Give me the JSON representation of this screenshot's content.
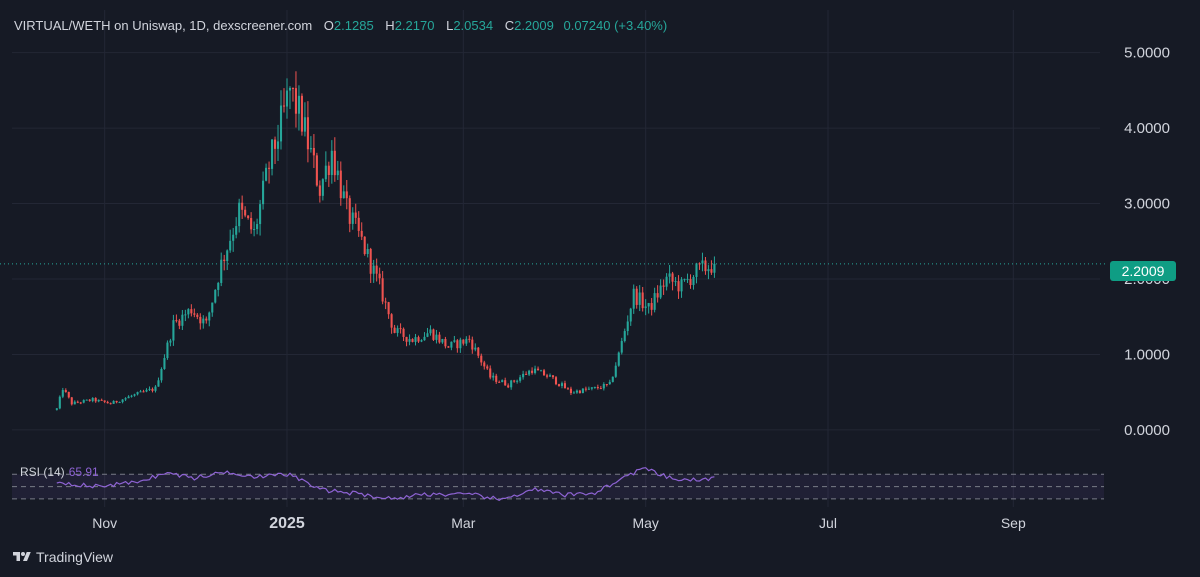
{
  "header": {
    "symbol": "VIRTUAL/WETH on Uniswap, 1D, dexscreener.com",
    "open_label": "O",
    "open": "2.1285",
    "high_label": "H",
    "high": "2.2170",
    "low_label": "L",
    "low": "2.0534",
    "close_label": "C",
    "close": "2.2009",
    "change": "0.07240 (+3.40%)"
  },
  "rsi": {
    "label": "RSI (14)",
    "value": "65.91"
  },
  "last_price_badge": "2.2009",
  "branding": {
    "name": "TradingView",
    "icon": "tradingview-logo-icon"
  },
  "colors": {
    "background": "#161a25",
    "up": "#26a69a",
    "down": "#ef5350",
    "rsi_line": "#8e63d4"
  },
  "chart_data": {
    "type": "candlestick",
    "interval": "1D",
    "y_ticks": [
      "0.0000",
      "1.0000",
      "2.0000",
      "3.0000",
      "4.0000",
      "5.0000"
    ],
    "ylim": [
      -0.2,
      5.3
    ],
    "x_ticks": [
      {
        "label": "Nov",
        "date": "2024-11-01"
      },
      {
        "label": "2025",
        "date": "2025-01-01"
      },
      {
        "label": "Mar",
        "date": "2025-03-01"
      },
      {
        "label": "May",
        "date": "2025-05-01"
      },
      {
        "label": "Jul",
        "date": "2025-07-01"
      },
      {
        "label": "Sep",
        "date": "2025-09-01"
      }
    ],
    "xlim": [
      "2024-10-01",
      "2025-09-30"
    ],
    "last_price": 2.2009,
    "first_date": "2024-10-16",
    "close_anchors": [
      [
        "2024-10-16",
        0.28
      ],
      [
        "2024-10-18",
        0.55
      ],
      [
        "2024-10-21",
        0.35
      ],
      [
        "2024-10-28",
        0.4
      ],
      [
        "2024-11-03",
        0.35
      ],
      [
        "2024-11-10",
        0.45
      ],
      [
        "2024-11-18",
        0.55
      ],
      [
        "2024-11-24",
        1.4
      ],
      [
        "2024-11-30",
        1.6
      ],
      [
        "2024-12-05",
        1.4
      ],
      [
        "2024-12-10",
        2.2
      ],
      [
        "2024-12-16",
        2.9
      ],
      [
        "2024-12-21",
        2.6
      ],
      [
        "2024-12-26",
        3.5
      ],
      [
        "2024-12-31",
        4.2
      ],
      [
        "2025-01-02",
        4.5
      ],
      [
        "2025-01-06",
        4.1
      ],
      [
        "2025-01-12",
        3.2
      ],
      [
        "2025-01-16",
        3.7
      ],
      [
        "2025-01-21",
        2.9
      ],
      [
        "2025-01-26",
        2.5
      ],
      [
        "2025-02-01",
        1.9
      ],
      [
        "2025-02-06",
        1.3
      ],
      [
        "2025-02-12",
        1.2
      ],
      [
        "2025-02-18",
        1.3
      ],
      [
        "2025-02-24",
        1.1
      ],
      [
        "2025-03-03",
        1.2
      ],
      [
        "2025-03-10",
        0.7
      ],
      [
        "2025-03-16",
        0.6
      ],
      [
        "2025-03-24",
        0.8
      ],
      [
        "2025-03-30",
        0.7
      ],
      [
        "2025-04-06",
        0.5
      ],
      [
        "2025-04-14",
        0.55
      ],
      [
        "2025-04-19",
        0.6
      ],
      [
        "2025-04-22",
        1.0
      ],
      [
        "2025-04-27",
        1.8
      ],
      [
        "2025-05-02",
        1.6
      ],
      [
        "2025-05-08",
        2.0
      ],
      [
        "2025-05-13",
        1.9
      ],
      [
        "2025-05-18",
        2.1
      ],
      [
        "2025-05-24",
        2.2009
      ]
    ],
    "rsi_levels": [
      70,
      50,
      30
    ],
    "rsi_anchors": [
      [
        "2024-10-16",
        58
      ],
      [
        "2024-10-28",
        50
      ],
      [
        "2024-11-10",
        56
      ],
      [
        "2024-11-22",
        72
      ],
      [
        "2024-12-01",
        64
      ],
      [
        "2024-12-12",
        74
      ],
      [
        "2024-12-22",
        66
      ],
      [
        "2025-01-02",
        70
      ],
      [
        "2025-01-12",
        45
      ],
      [
        "2025-01-22",
        40
      ],
      [
        "2025-02-05",
        30
      ],
      [
        "2025-02-16",
        38
      ],
      [
        "2025-03-05",
        36
      ],
      [
        "2025-03-14",
        28
      ],
      [
        "2025-03-24",
        46
      ],
      [
        "2025-04-04",
        36
      ],
      [
        "2025-04-14",
        40
      ],
      [
        "2025-04-20",
        55
      ],
      [
        "2025-04-30",
        80
      ],
      [
        "2025-05-10",
        62
      ],
      [
        "2025-05-20",
        60
      ],
      [
        "2025-05-24",
        65.91
      ]
    ]
  }
}
